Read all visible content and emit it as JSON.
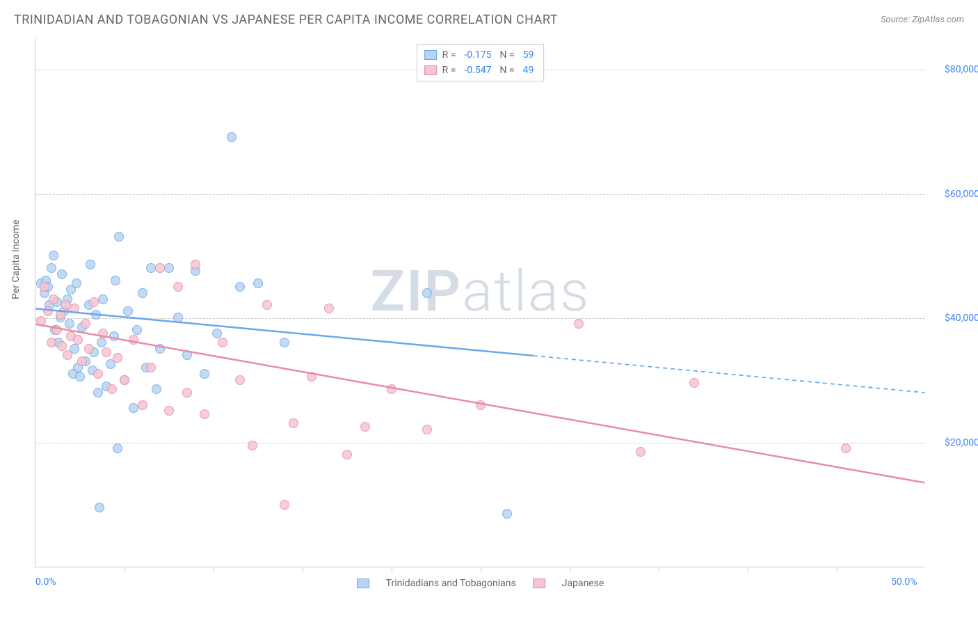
{
  "header": {
    "title": "TRINIDADIAN AND TOBAGONIAN VS JAPANESE PER CAPITA INCOME CORRELATION CHART",
    "source": "Source: ZipAtlas.com"
  },
  "watermark": {
    "part1": "ZIP",
    "part2": "atlas"
  },
  "chart": {
    "type": "scatter",
    "ylabel": "Per Capita Income",
    "background_color": "#ffffff",
    "grid_color": "#cccccc",
    "axis_color": "#cccccc",
    "label_color": "#666666",
    "value_color": "#3b82f6",
    "xlim": [
      0,
      50
    ],
    "ylim": [
      0,
      85000
    ],
    "xticks": [
      0,
      50
    ],
    "xtick_labels": [
      "0.0%",
      "50.0%"
    ],
    "xticks_minor": [
      5,
      10,
      15,
      20,
      25,
      30,
      35,
      40,
      45
    ],
    "yticks": [
      20000,
      40000,
      60000,
      80000
    ],
    "ytick_labels": [
      "$20,000",
      "$40,000",
      "$60,000",
      "$80,000"
    ],
    "marker_radius": 7,
    "marker_fill_opacity": 0.35,
    "marker_stroke_width": 1.5,
    "series": [
      {
        "name": "Trinidadians and Tobagonians",
        "color": "#6aa8e8",
        "fill": "#b9d4f3",
        "r": -0.175,
        "n": 59,
        "trend": {
          "y_at_xmin": 41500,
          "y_at_xmax": 28000,
          "solid_until_x": 28,
          "line_width": 2.5,
          "style_after": "dashed"
        },
        "points": [
          [
            0.3,
            45500
          ],
          [
            0.5,
            44000
          ],
          [
            0.6,
            46000
          ],
          [
            0.7,
            45000
          ],
          [
            0.8,
            42000
          ],
          [
            0.9,
            48000
          ],
          [
            1.0,
            50000
          ],
          [
            1.1,
            38000
          ],
          [
            1.2,
            42500
          ],
          [
            1.3,
            36000
          ],
          [
            1.4,
            40000
          ],
          [
            1.5,
            47000
          ],
          [
            1.6,
            41000
          ],
          [
            1.8,
            43000
          ],
          [
            1.9,
            39000
          ],
          [
            2.0,
            44500
          ],
          [
            2.1,
            31000
          ],
          [
            2.2,
            35000
          ],
          [
            2.3,
            45500
          ],
          [
            2.4,
            32000
          ],
          [
            2.5,
            30500
          ],
          [
            2.6,
            38500
          ],
          [
            2.8,
            33000
          ],
          [
            3.0,
            42000
          ],
          [
            3.1,
            48500
          ],
          [
            3.2,
            31500
          ],
          [
            3.3,
            34500
          ],
          [
            3.4,
            40500
          ],
          [
            3.5,
            28000
          ],
          [
            3.7,
            36000
          ],
          [
            3.8,
            43000
          ],
          [
            4.0,
            29000
          ],
          [
            4.2,
            32500
          ],
          [
            4.4,
            37000
          ],
          [
            4.5,
            46000
          ],
          [
            4.6,
            19000
          ],
          [
            4.7,
            53000
          ],
          [
            5.0,
            30000
          ],
          [
            5.2,
            41000
          ],
          [
            5.5,
            25500
          ],
          [
            5.7,
            38000
          ],
          [
            6.0,
            44000
          ],
          [
            6.2,
            32000
          ],
          [
            6.5,
            48000
          ],
          [
            6.8,
            28500
          ],
          [
            7.0,
            35000
          ],
          [
            7.5,
            48000
          ],
          [
            8.0,
            40000
          ],
          [
            8.5,
            34000
          ],
          [
            9.0,
            47500
          ],
          [
            9.5,
            31000
          ],
          [
            10.2,
            37500
          ],
          [
            11.0,
            69000
          ],
          [
            11.5,
            45000
          ],
          [
            12.5,
            45500
          ],
          [
            14.0,
            36000
          ],
          [
            22.0,
            44000
          ],
          [
            3.6,
            9500
          ],
          [
            26.5,
            8500
          ]
        ]
      },
      {
        "name": "Japanese",
        "color": "#e88ba3",
        "fill": "#f5c5d2",
        "r": -0.547,
        "n": 49,
        "trend": {
          "y_at_xmin": 39000,
          "y_at_xmax": 13500,
          "solid_until_x": 50,
          "line_width": 2.5,
          "style_after": "solid"
        },
        "points": [
          [
            0.3,
            39500
          ],
          [
            0.5,
            45000
          ],
          [
            0.7,
            41000
          ],
          [
            0.9,
            36000
          ],
          [
            1.0,
            43000
          ],
          [
            1.2,
            38000
          ],
          [
            1.4,
            40500
          ],
          [
            1.5,
            35500
          ],
          [
            1.7,
            42000
          ],
          [
            1.8,
            34000
          ],
          [
            2.0,
            37000
          ],
          [
            2.2,
            41500
          ],
          [
            2.4,
            36500
          ],
          [
            2.6,
            33000
          ],
          [
            2.8,
            39000
          ],
          [
            3.0,
            35000
          ],
          [
            3.3,
            42500
          ],
          [
            3.5,
            31000
          ],
          [
            3.8,
            37500
          ],
          [
            4.0,
            34500
          ],
          [
            4.3,
            28500
          ],
          [
            4.6,
            33500
          ],
          [
            5.0,
            30000
          ],
          [
            5.5,
            36500
          ],
          [
            6.0,
            26000
          ],
          [
            6.5,
            32000
          ],
          [
            7.0,
            48000
          ],
          [
            7.5,
            25000
          ],
          [
            8.0,
            45000
          ],
          [
            8.5,
            28000
          ],
          [
            9.0,
            48500
          ],
          [
            9.5,
            24500
          ],
          [
            10.5,
            36000
          ],
          [
            11.5,
            30000
          ],
          [
            12.2,
            19500
          ],
          [
            13.0,
            42000
          ],
          [
            14.5,
            23000
          ],
          [
            15.5,
            30500
          ],
          [
            16.5,
            41500
          ],
          [
            17.5,
            18000
          ],
          [
            18.5,
            22500
          ],
          [
            20.0,
            28500
          ],
          [
            22.0,
            22000
          ],
          [
            25.0,
            26000
          ],
          [
            30.5,
            39000
          ],
          [
            34.0,
            18500
          ],
          [
            37.0,
            29500
          ],
          [
            45.5,
            19000
          ],
          [
            14.0,
            10000
          ]
        ]
      }
    ],
    "legend_bottom": [
      {
        "label": "Trinidadians and Tobagonians",
        "color": "#6aa8e8",
        "fill": "#b9d4f3"
      },
      {
        "label": "Japanese",
        "color": "#e88ba3",
        "fill": "#f5c5d2"
      }
    ]
  },
  "fontsize": {
    "title": 18,
    "label": 14,
    "legend": 14,
    "source": 13,
    "watermark": 82
  }
}
